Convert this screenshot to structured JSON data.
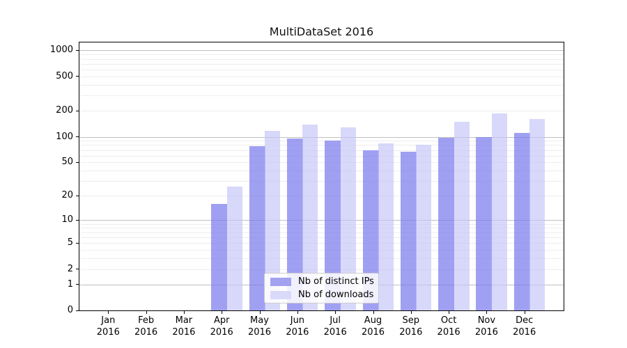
{
  "title": "MultiDataSet 2016",
  "chart_data": {
    "type": "bar",
    "yscale": "log1p",
    "title": "MultiDataSet 2016",
    "xlabel": "",
    "ylabel": "",
    "year": "2016",
    "categories": [
      "Jan",
      "Feb",
      "Mar",
      "Apr",
      "May",
      "Jun",
      "Jul",
      "Aug",
      "Sep",
      "Oct",
      "Nov",
      "Dec"
    ],
    "series": [
      {
        "name": "Nb of distinct IPs",
        "color": "#a2a2f1",
        "bar_rgba": "rgba(120,120,238,0.70)",
        "values": [
          0,
          0,
          0,
          16,
          78,
          95,
          90,
          70,
          67,
          97,
          100,
          110
        ]
      },
      {
        "name": "Nb of downloads",
        "color": "#d9d9fa",
        "bar_rgba": "rgba(195,195,248,0.65)",
        "values": [
          0,
          0,
          0,
          26,
          118,
          138,
          129,
          84,
          81,
          150,
          188,
          161
        ]
      }
    ],
    "yticks": [
      1000,
      500,
      200,
      100,
      50,
      20,
      10,
      5,
      2,
      1,
      0
    ],
    "ylim": [
      0,
      1255
    ],
    "grid": "on",
    "grid_major_color": "#bfbfbf",
    "grid_minor_color": "#ededed",
    "legend_position": "lower-center-inside"
  }
}
